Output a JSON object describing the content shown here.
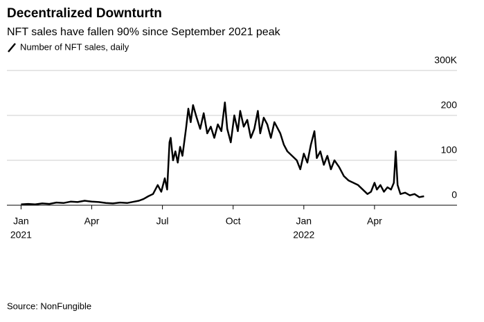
{
  "chart_data": {
    "type": "line",
    "title": "Decentralized Downturtn",
    "subtitle": "NFT sales have fallen 90% since September 2021 peak",
    "source": "Source: NonFungible",
    "series": [
      {
        "name": "Number of NFT sales, daily",
        "color": "#000000",
        "x": [
          0,
          0.3,
          0.6,
          0.9,
          1.2,
          1.5,
          1.8,
          2.1,
          2.4,
          2.7,
          3.0,
          3.3,
          3.6,
          3.9,
          4.2,
          4.5,
          4.8,
          5.0,
          5.2,
          5.4,
          5.6,
          5.8,
          5.95,
          6.1,
          6.2,
          6.3,
          6.35,
          6.45,
          6.55,
          6.65,
          6.75,
          6.85,
          7.0,
          7.1,
          7.2,
          7.3,
          7.45,
          7.6,
          7.75,
          7.9,
          8.05,
          8.2,
          8.35,
          8.5,
          8.65,
          8.75,
          8.9,
          9.05,
          9.2,
          9.3,
          9.45,
          9.6,
          9.75,
          9.9,
          10.05,
          10.15,
          10.3,
          10.45,
          10.6,
          10.75,
          10.85,
          11.0,
          11.15,
          11.3,
          11.5,
          11.7,
          11.85,
          12.0,
          12.15,
          12.3,
          12.45,
          12.55,
          12.7,
          12.85,
          13.0,
          13.15,
          13.3,
          13.5,
          13.7,
          13.9,
          14.1,
          14.3,
          14.5,
          14.7,
          14.85,
          15.0,
          15.1,
          15.25,
          15.4,
          15.55,
          15.7,
          15.82,
          15.9,
          15.98,
          16.1,
          16.3,
          16.5,
          16.7,
          16.9,
          17.1
        ],
        "values": [
          2,
          3,
          2,
          4,
          3,
          6,
          5,
          8,
          7,
          10,
          8,
          7,
          5,
          4,
          6,
          5,
          8,
          10,
          14,
          20,
          25,
          45,
          30,
          60,
          35,
          140,
          150,
          100,
          120,
          95,
          130,
          110,
          170,
          215,
          185,
          223,
          195,
          170,
          205,
          160,
          175,
          150,
          180,
          165,
          229,
          170,
          140,
          200,
          165,
          210,
          175,
          190,
          150,
          170,
          210,
          160,
          195,
          180,
          150,
          185,
          175,
          160,
          135,
          120,
          110,
          100,
          80,
          115,
          95,
          135,
          165,
          105,
          120,
          90,
          110,
          80,
          100,
          85,
          65,
          55,
          50,
          45,
          35,
          25,
          30,
          50,
          35,
          45,
          30,
          40,
          35,
          50,
          120,
          45,
          25,
          28,
          22,
          25,
          18,
          20
        ]
      }
    ],
    "xlim": [
      -0.6,
      18.5
    ],
    "ylim": [
      0,
      300
    ],
    "xticks": [
      {
        "value": 0,
        "label": "Jan"
      },
      {
        "value": 3,
        "label": "Apr"
      },
      {
        "value": 6,
        "label": "Jul"
      },
      {
        "value": 9,
        "label": "Oct"
      },
      {
        "value": 12,
        "label": "Jan"
      },
      {
        "value": 15,
        "label": "Apr"
      }
    ],
    "year_labels": [
      {
        "value": 0,
        "label": "2021"
      },
      {
        "value": 12,
        "label": "2022"
      }
    ],
    "yticks": [
      0,
      100,
      200,
      {
        "value": 300,
        "label": "300K"
      }
    ],
    "grid": true
  }
}
